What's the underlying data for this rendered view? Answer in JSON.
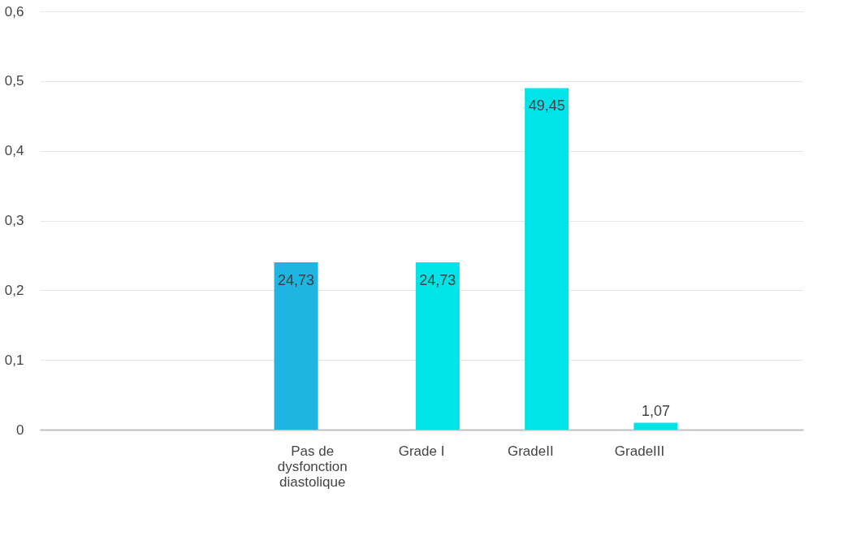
{
  "chart_data": {
    "type": "bar",
    "categories": [
      null,
      null,
      "Pas de dysfonction diastolique",
      "Grade I",
      "GradeII",
      "GradeIII",
      null
    ],
    "series": [
      {
        "color": "#1fb4e2",
        "values": [
          null,
          null,
          0.24,
          null,
          null,
          null,
          null
        ]
      },
      {
        "color": "#00e4e8",
        "values": [
          null,
          null,
          null,
          0.24,
          0.49,
          0.01,
          null
        ]
      }
    ],
    "annotations": [
      {
        "text": "24,73",
        "x": "Pas de dysfonction diastolique",
        "y": 0.24
      },
      {
        "text": "24,73",
        "x": "Grade I",
        "y": 0.24
      },
      {
        "text": "49,45",
        "x": "GradeII",
        "y": 0.49
      },
      {
        "text": "1,07",
        "x": "GradeIII",
        "y": 0.01
      }
    ],
    "ylim": [
      0,
      0.6
    ],
    "yticks": [
      {
        "value": 0,
        "label": "0"
      },
      {
        "value": 0.1,
        "label": "0,1"
      },
      {
        "value": 0.2,
        "label": "0,2"
      },
      {
        "value": 0.3,
        "label": "0,3"
      },
      {
        "value": 0.4,
        "label": "0,4"
      },
      {
        "value": 0.5,
        "label": "0,5"
      },
      {
        "value": 0.6,
        "label": "0,6"
      }
    ],
    "grid": "y",
    "legend": false
  }
}
